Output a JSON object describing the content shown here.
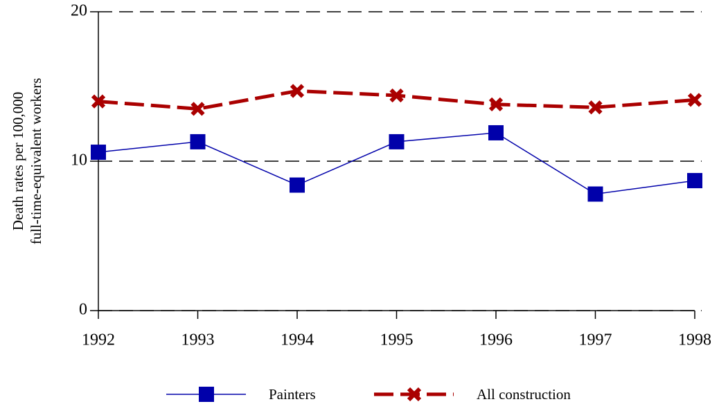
{
  "chart_data": {
    "type": "line",
    "ylabel": [
      "Death rates per 100,000",
      "full-time-equivalent workers"
    ],
    "x": [
      1992,
      1993,
      1994,
      1995,
      1996,
      1997,
      1998
    ],
    "xlim": [
      1992,
      1998
    ],
    "xticks": [
      1992,
      1993,
      1994,
      1995,
      1996,
      1997,
      1998
    ],
    "ylim": [
      0,
      20
    ],
    "yticks": [
      0,
      10,
      20
    ],
    "grid": true,
    "series": [
      {
        "name": "Painters",
        "color": "#0000aa",
        "marker": "square",
        "dashed": false,
        "values": [
          10.6,
          11.3,
          8.4,
          11.3,
          11.9,
          7.8,
          8.7
        ]
      },
      {
        "name": "All construction",
        "color": "#aa0000",
        "marker": "x",
        "dashed": true,
        "values": [
          14.0,
          13.5,
          14.7,
          14.4,
          13.8,
          13.6,
          14.1
        ]
      }
    ]
  }
}
